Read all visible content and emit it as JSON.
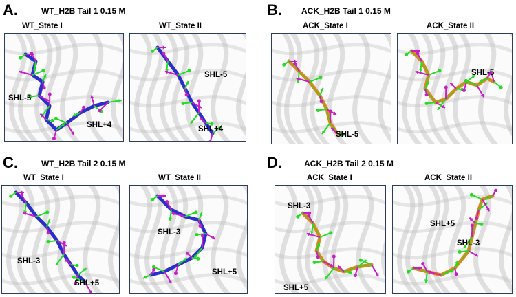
{
  "panels": [
    {
      "letter": "A.",
      "title": "WT_H2B Tail 1 0.15 M",
      "states": [
        {
          "title": "WT_State I",
          "labels": [
            "SHL-5",
            "SHL+4"
          ],
          "color": "blue"
        },
        {
          "title": "WT_State II",
          "labels": [
            "SHL-5",
            "SHL+4"
          ],
          "color": "blue"
        }
      ]
    },
    {
      "letter": "B.",
      "title": "ACK_H2B Tail 1 0.15 M",
      "states": [
        {
          "title": "ACK_State I",
          "labels": [
            "SHL-5"
          ],
          "color": "orange"
        },
        {
          "title": "ACK_State II",
          "labels": [
            "SHL-5"
          ],
          "color": "orange"
        }
      ]
    },
    {
      "letter": "C.",
      "title": "WT_H2B Tail 2 0.15 M",
      "states": [
        {
          "title": "WT_State I",
          "labels": [
            "SHL-3",
            "SHL+5"
          ],
          "color": "blue"
        },
        {
          "title": "WT_State II",
          "labels": [
            "SHL-3",
            "SHL+5"
          ],
          "color": "blue"
        }
      ]
    },
    {
      "letter": "D.",
      "title": "ACK_H2B Tail 2 0.15 M",
      "states": [
        {
          "title": "ACK_State I",
          "labels": [
            "SHL-3",
            "SHL+5"
          ],
          "color": "orange"
        },
        {
          "title": "ACK_State II",
          "labels": [
            "SHL+5",
            "SHL-3"
          ],
          "color": "orange"
        }
      ]
    }
  ],
  "colors": {
    "wt_tail": "#2b2fc9",
    "ack_tail": "#e8821e",
    "vector_green": "#22dd22",
    "vector_magenta": "#c81ec8",
    "dna_gray": "#bdbdbd",
    "frame": "#2c3e5c"
  }
}
